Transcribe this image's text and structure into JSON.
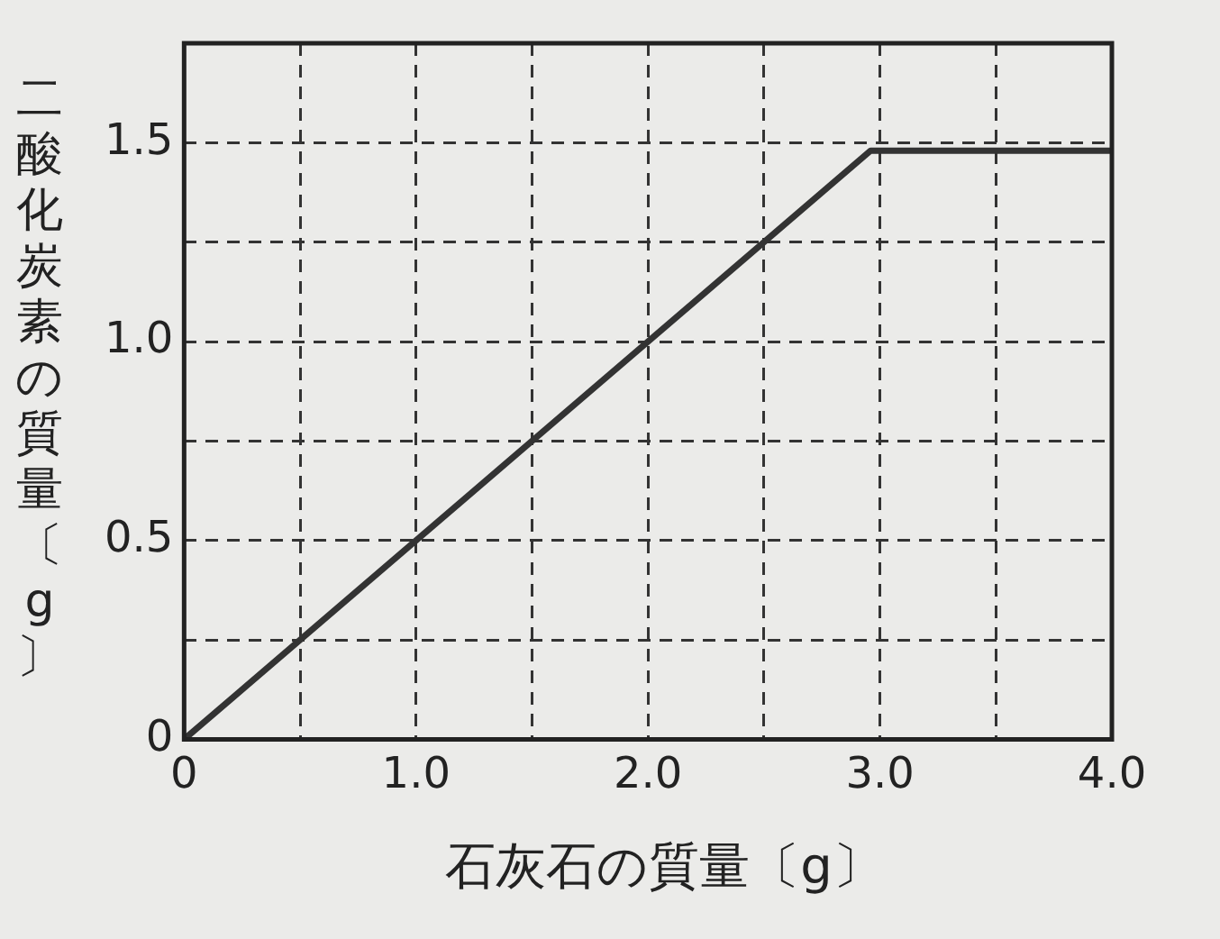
{
  "chart_data": {
    "type": "line",
    "xlabel": "石灰石の質量〔g〕",
    "ylabel": "二酸化炭素の質量〔g〕",
    "x": [
      0,
      2.96,
      4.0
    ],
    "series": [
      {
        "color": "#333333",
        "values": [
          0,
          1.48,
          1.48
        ]
      }
    ],
    "xlim": [
      0,
      4
    ],
    "ylim": [
      0,
      1.75
    ],
    "xticks": [
      0,
      {
        "value": 0.5,
        "label": null
      },
      {
        "value": 1,
        "label": "1.0"
      },
      {
        "value": 1.5,
        "label": null
      },
      {
        "value": 2,
        "label": "2.0"
      },
      {
        "value": 2.5,
        "label": null
      },
      {
        "value": 3,
        "label": "3.0"
      },
      {
        "value": 3.5,
        "label": null
      },
      {
        "value": 4,
        "label": "4.0"
      }
    ],
    "yticks": [
      0,
      {
        "value": 0.25,
        "label": null
      },
      0.5,
      {
        "value": 0.75,
        "label": null
      },
      {
        "value": 1,
        "label": "1.0"
      },
      {
        "value": 1.25,
        "label": null
      },
      1.5,
      {
        "value": 1.75,
        "label": null
      }
    ],
    "grid": true,
    "legend": false,
    "marker": "none",
    "line_style": "solid"
  }
}
